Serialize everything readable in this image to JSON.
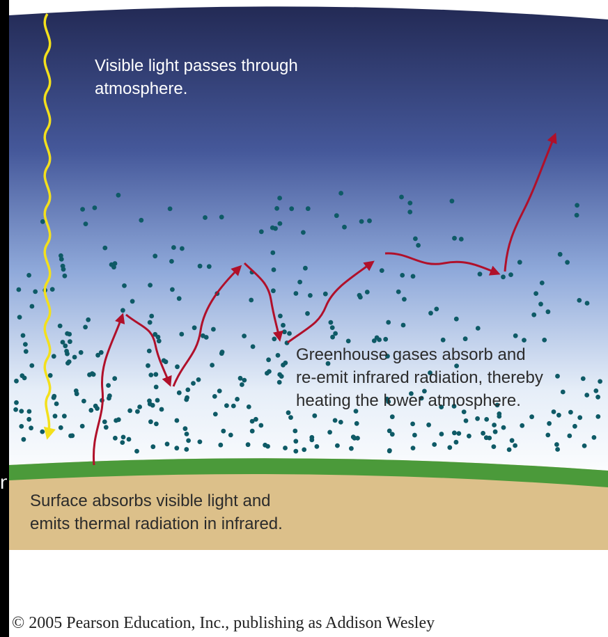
{
  "labels": {
    "visible_light": "Visible light passes through\natmosphere.",
    "greenhouse": "Greenhouse gases absorb and\nre-emit infrared radiation, thereby\nheating the lower atmosphere.",
    "surface": "Surface absorbs visible light and\nemits thermal radiation in infrared."
  },
  "copyright": "© 2005 Pearson Education, Inc., publishing as Addison Wesley",
  "colors": {
    "sky_top": "#232a55",
    "sky_mid": "#7f9fd3",
    "sky_bottom": "#ffffff",
    "molecule": "#0e5a66",
    "infrared_arrow": "#b0102a",
    "visible_ray": "#f3e01c",
    "grass": "#4b9a3a",
    "ground": "#dcc08a"
  }
}
